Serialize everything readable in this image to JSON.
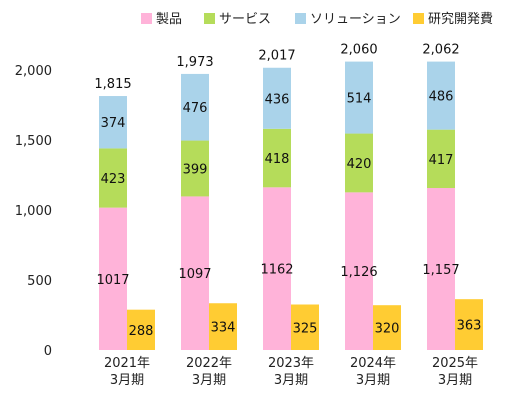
{
  "chart_data": {
    "type": "bar",
    "stacked": true,
    "categories": [
      [
        "2021年",
        "3月期"
      ],
      [
        "2022年",
        "3月期"
      ],
      [
        "2023年",
        "3月期"
      ],
      [
        "2024年",
        "3月期"
      ],
      [
        "2025年",
        "3月期"
      ]
    ],
    "stack_series": [
      {
        "name": "製品",
        "color": "#ffb3d9",
        "values": [
          1017,
          1097,
          1162,
          1126,
          1157
        ],
        "labels": [
          "1017",
          "1097",
          "1162",
          "1,126",
          "1,157"
        ]
      },
      {
        "name": "サービス",
        "color": "#b5dc5a",
        "values": [
          423,
          399,
          418,
          420,
          417
        ],
        "labels": [
          "423",
          "399",
          "418",
          "420",
          "417"
        ]
      },
      {
        "name": "ソリューション",
        "color": "#aad3ea",
        "values": [
          374,
          476,
          436,
          514,
          486
        ],
        "labels": [
          "374",
          "476",
          "436",
          "514",
          "486"
        ]
      }
    ],
    "side_series": {
      "name": "研究開発費",
      "color": "#ffcc33",
      "values": [
        288,
        334,
        325,
        320,
        363
      ],
      "labels": [
        "288",
        "334",
        "325",
        "320",
        "363"
      ]
    },
    "totals": [
      1815,
      1973,
      2017,
      2060,
      2062
    ],
    "total_labels": [
      "1,815",
      "1,973",
      "2,017",
      "2,060",
      "2,062"
    ],
    "ylim": [
      0,
      2000
    ],
    "yticks": [
      0,
      500,
      1000,
      1500,
      2000
    ],
    "ytick_labels": [
      "0",
      "500",
      "1,000",
      "1,500",
      "2,000"
    ],
    "legend_position": "top",
    "grid": false,
    "title": "",
    "xlabel": "",
    "ylabel": ""
  }
}
